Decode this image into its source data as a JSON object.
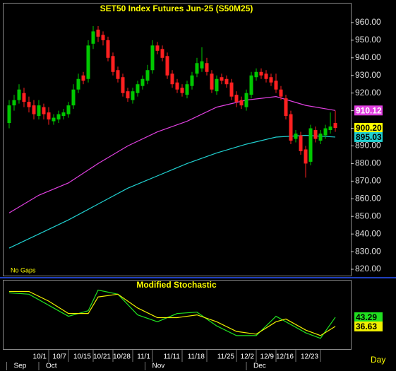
{
  "chart_data": [
    {
      "type": "candlestick",
      "title": "SET50  Index  Futures  Jun-25  (S50M25)",
      "annotation": "No Gaps",
      "xlim": [
        -1.14,
        69.14
      ],
      "ylim": [
        816.4,
        970.8
      ],
      "yticks": [
        {
          "value": 960,
          "label": "960.00"
        },
        {
          "value": 950,
          "label": "950.00"
        },
        {
          "value": 940,
          "label": "940.00"
        },
        {
          "value": 930,
          "label": "930.00"
        },
        {
          "value": 920,
          "label": "920.00"
        },
        {
          "value": 910,
          "label": "910.00"
        },
        {
          "value": 900,
          "label": "900.00"
        },
        {
          "value": 890,
          "label": "890.00"
        },
        {
          "value": 880,
          "label": "880.00"
        },
        {
          "value": 870,
          "label": "870.00"
        },
        {
          "value": 860,
          "label": "860.00"
        },
        {
          "value": 850,
          "label": "850.00"
        },
        {
          "value": 840,
          "label": "840.00"
        },
        {
          "value": 830,
          "label": "830.00"
        },
        {
          "value": 820,
          "label": "820.00"
        }
      ],
      "up_color": "#00c800",
      "down_color": "#ff2020",
      "open": [
        903,
        913,
        916,
        920,
        915,
        913,
        907,
        912,
        909,
        904,
        905,
        907,
        908,
        913,
        922,
        930,
        928,
        948,
        956,
        953,
        950,
        941,
        933,
        929,
        921,
        916,
        920,
        924,
        927,
        933,
        947,
        945,
        941,
        931,
        926,
        923,
        919,
        924,
        931,
        934,
        937,
        931,
        921,
        929,
        928,
        926,
        919,
        916,
        912,
        919,
        929,
        932,
        931,
        929,
        927,
        922,
        917,
        908,
        894,
        896,
        888,
        881,
        899,
        893,
        896,
        899,
        903
      ],
      "high": [
        916,
        919,
        925,
        923,
        918,
        916,
        916,
        914,
        912,
        908,
        910,
        911,
        915,
        925,
        931,
        932,
        950,
        958,
        958,
        955,
        952,
        943,
        935,
        931,
        923,
        923,
        927,
        930,
        936,
        950,
        949,
        947,
        943,
        933,
        928,
        925,
        927,
        932,
        940,
        946,
        940,
        933,
        930,
        931,
        930,
        928,
        921,
        918,
        922,
        932,
        934,
        934,
        933,
        931,
        931,
        924,
        919,
        910,
        899,
        898,
        890,
        902,
        901,
        899,
        902,
        909,
        910
      ],
      "low": [
        900,
        910,
        914,
        912,
        909,
        905,
        905,
        905,
        902,
        902,
        903,
        905,
        906,
        911,
        920,
        925,
        926,
        945,
        949,
        947,
        938,
        930,
        926,
        918,
        915,
        914,
        918,
        922,
        925,
        931,
        942,
        938,
        928,
        923,
        920,
        918,
        917,
        922,
        929,
        932,
        930,
        920,
        919,
        925,
        923,
        916,
        912,
        911,
        910,
        917,
        927,
        928,
        926,
        924,
        920,
        916,
        905,
        891,
        892,
        885,
        872,
        879,
        892,
        891,
        894,
        897,
        898
      ],
      "close": [
        913,
        916,
        922,
        915,
        912,
        908,
        913,
        908,
        905,
        906,
        908,
        909,
        913,
        922,
        928,
        927,
        947,
        955,
        952,
        950,
        940,
        932,
        928,
        920,
        917,
        921,
        925,
        928,
        933,
        947,
        944,
        940,
        930,
        925,
        922,
        920,
        925,
        930,
        937,
        938,
        932,
        922,
        928,
        927,
        925,
        918,
        915,
        913,
        920,
        930,
        932,
        930,
        928,
        926,
        922,
        918,
        907,
        893,
        897,
        887,
        880,
        900,
        894,
        897,
        900,
        901,
        900.2
      ],
      "last_price": {
        "value": 900.2,
        "label": "900.20"
      },
      "series": [
        {
          "color": "#e040e0",
          "x": [
            0,
            6,
            12,
            18,
            24,
            30,
            36,
            42,
            48,
            54,
            60,
            66
          ],
          "values": [
            852,
            862,
            869,
            880,
            890,
            898,
            904,
            912,
            916,
            918,
            913,
            910.12
          ]
        },
        {
          "color": "#20d0d0",
          "x": [
            0,
            6,
            12,
            18,
            24,
            30,
            36,
            42,
            48,
            54,
            60,
            66
          ],
          "values": [
            832,
            840,
            848,
            857,
            866,
            873,
            880,
            886,
            891,
            895,
            896,
            895.03
          ]
        }
      ]
    },
    {
      "type": "line",
      "title": "Modified  Stochastic",
      "period": "Day",
      "xlim": [
        -1.14,
        69.14
      ],
      "ylim": [
        20.7,
        69.4
      ],
      "xticks": [
        {
          "value": 8,
          "label": "10/1"
        },
        {
          "value": 12,
          "label": "10/7"
        },
        {
          "value": 17,
          "label": "10/15"
        },
        {
          "value": 21,
          "label": "10/21"
        },
        {
          "value": 25,
          "label": "10/28"
        },
        {
          "value": 29,
          "label": "11/1"
        },
        {
          "value": 35,
          "label": "11/11"
        },
        {
          "value": 40,
          "label": "11/18"
        },
        {
          "value": 46,
          "label": "11/25"
        },
        {
          "value": 50,
          "label": "12/2"
        },
        {
          "value": 54,
          "label": "12/9"
        },
        {
          "value": 58,
          "label": "12/16"
        },
        {
          "value": 63,
          "label": "12/23"
        }
      ],
      "month_ticks": [
        {
          "value": -0.5,
          "label": "Sep"
        },
        {
          "value": 6,
          "label": "Oct"
        },
        {
          "value": 27.5,
          "label": "Nov"
        },
        {
          "value": 48,
          "label": "Dec"
        }
      ],
      "series": [
        {
          "color": "#20e020",
          "x": [
            0,
            4,
            8,
            12,
            16,
            18,
            22,
            26,
            30,
            34,
            38,
            42,
            46,
            50,
            54,
            56,
            60,
            63,
            66
          ],
          "values": [
            61,
            60,
            52,
            44,
            48,
            63,
            60,
            45,
            40,
            46,
            47,
            37,
            30,
            30,
            44,
            40,
            32,
            28,
            43.29
          ]
        },
        {
          "color": "#f0f000",
          "x": [
            0,
            4,
            8,
            12,
            16,
            18,
            22,
            26,
            30,
            34,
            38,
            42,
            46,
            50,
            54,
            56,
            60,
            63,
            66
          ],
          "values": [
            62,
            62,
            55,
            46,
            46,
            58,
            60,
            50,
            43,
            43,
            45,
            40,
            33,
            31,
            40,
            42,
            34,
            30,
            36.63
          ]
        }
      ]
    }
  ]
}
